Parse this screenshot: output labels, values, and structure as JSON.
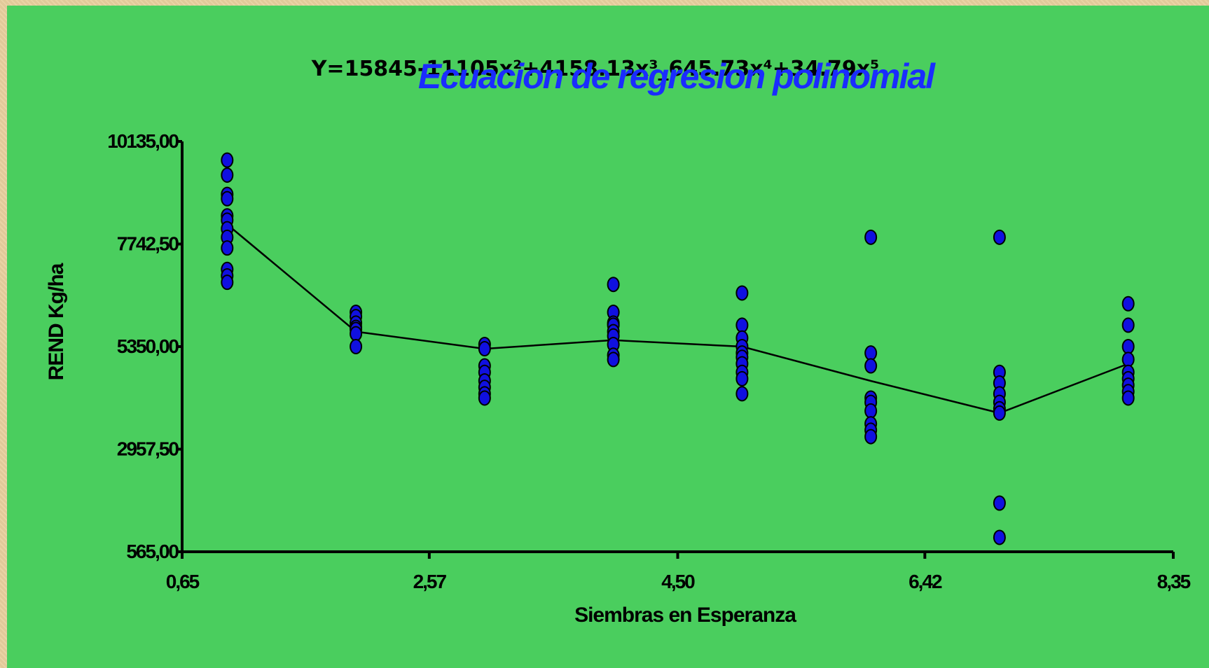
{
  "colors": {
    "background": "#4ace5e",
    "point_fill": "#1010e0",
    "point_stroke": "#000000",
    "line": "#000000",
    "title": "#1a2cff"
  },
  "chart_data": {
    "type": "scatter",
    "title": "Ecuacion de regresion polinomial",
    "equation": "Y=15845-11105x²+4158.13x³_645.73x⁴+34.79x⁵",
    "xlabel": "Siembras en Esperanza",
    "ylabel": "REND Kg/ha",
    "xlim": [
      0.65,
      8.35
    ],
    "ylim": [
      565.0,
      10135.0
    ],
    "x_ticks": [
      0.65,
      2.57,
      4.5,
      6.42,
      8.35
    ],
    "x_tick_labels": [
      "0,65",
      "2,57",
      "4,50",
      "6,42",
      "8,35"
    ],
    "y_ticks": [
      565.0,
      2957.5,
      5350.0,
      7742.5,
      10135.0
    ],
    "y_tick_labels": [
      "565,00",
      "2957,50",
      "5350,00",
      "7742,50",
      "10135,00"
    ],
    "grid": false,
    "series": [
      {
        "kind": "points",
        "points": [
          [
            1,
            9700
          ],
          [
            1,
            9350
          ],
          [
            1,
            8900
          ],
          [
            1,
            8800
          ],
          [
            1,
            8400
          ],
          [
            1,
            8300
          ],
          [
            1,
            8100
          ],
          [
            1,
            7900
          ],
          [
            1,
            7650
          ],
          [
            1,
            7150
          ],
          [
            1,
            7000
          ],
          [
            1,
            6850
          ],
          [
            2,
            6150
          ],
          [
            2,
            6050
          ],
          [
            2,
            5900
          ],
          [
            2,
            5800
          ],
          [
            2,
            5750
          ],
          [
            2,
            5650
          ],
          [
            2,
            5350
          ],
          [
            3,
            5400
          ],
          [
            3,
            5300
          ],
          [
            3,
            4900
          ],
          [
            3,
            4750
          ],
          [
            3,
            4550
          ],
          [
            3,
            4400
          ],
          [
            3,
            4250
          ],
          [
            3,
            4150
          ],
          [
            4,
            6800
          ],
          [
            4,
            6150
          ],
          [
            4,
            5900
          ],
          [
            4,
            5850
          ],
          [
            4,
            5700
          ],
          [
            4,
            5600
          ],
          [
            4,
            5400
          ],
          [
            4,
            5150
          ],
          [
            4,
            5050
          ],
          [
            5,
            6600
          ],
          [
            5,
            5850
          ],
          [
            5,
            5550
          ],
          [
            5,
            5350
          ],
          [
            5,
            5200
          ],
          [
            5,
            5100
          ],
          [
            5,
            4950
          ],
          [
            5,
            4750
          ],
          [
            5,
            4600
          ],
          [
            5,
            4250
          ],
          [
            6,
            7900
          ],
          [
            6,
            5200
          ],
          [
            6,
            4900
          ],
          [
            6,
            4150
          ],
          [
            6,
            4050
          ],
          [
            6,
            3850
          ],
          [
            6,
            3550
          ],
          [
            6,
            3400
          ],
          [
            6,
            3250
          ],
          [
            7,
            7900
          ],
          [
            7,
            4750
          ],
          [
            7,
            4500
          ],
          [
            7,
            4250
          ],
          [
            7,
            4050
          ],
          [
            7,
            3900
          ],
          [
            7,
            3800
          ],
          [
            7,
            1700
          ],
          [
            7,
            900
          ],
          [
            8,
            6350
          ],
          [
            8,
            5850
          ],
          [
            8,
            5350
          ],
          [
            8,
            5050
          ],
          [
            8,
            4750
          ],
          [
            8,
            4600
          ],
          [
            8,
            4450
          ],
          [
            8,
            4300
          ],
          [
            8,
            4150
          ]
        ]
      },
      {
        "kind": "fitted-line",
        "x": [
          1,
          2,
          3,
          4,
          5,
          6,
          7,
          8
        ],
        "values": [
          8200,
          5700,
          5300,
          5500,
          5350,
          4550,
          3800,
          4950
        ]
      }
    ]
  }
}
